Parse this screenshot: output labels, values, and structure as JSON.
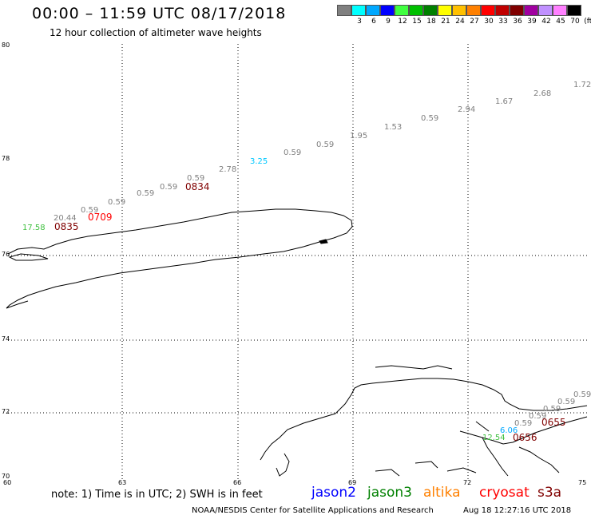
{
  "header": {
    "title": "00:00 – 11:59 UTC 08/17/2018",
    "subtitle": "12 hour collection of altimeter wave heights"
  },
  "colorscale": {
    "colors": [
      "#808080",
      "#00ffff",
      "#00a8ff",
      "#0000ff",
      "#40ff40",
      "#00c000",
      "#008000",
      "#ffff00",
      "#ffc000",
      "#ff8000",
      "#ff0000",
      "#c00000",
      "#800000",
      "#a000a0",
      "#c090ff",
      "#ff80ff",
      "#000000"
    ],
    "labels": [
      "3",
      "6",
      "9",
      "12",
      "15",
      "18",
      "21",
      "24",
      "27",
      "30",
      "33",
      "36",
      "39",
      "42",
      "45",
      "70",
      "(ft)"
    ]
  },
  "axes": {
    "lat_labels": [
      "80",
      "78",
      "76",
      "74",
      "72",
      "70"
    ],
    "lon_labels": [
      "60",
      "63",
      "66",
      "69",
      "72",
      "75"
    ]
  },
  "track1": {
    "points": [
      {
        "v": "17.58",
        "c": "#40c040"
      },
      {
        "v": "20.44",
        "c": "#808080"
      },
      {
        "v": "0.59",
        "c": "#808080"
      },
      {
        "v": "0.59",
        "c": "#808080"
      },
      {
        "v": "0.59",
        "c": "#808080"
      },
      {
        "v": "0.59",
        "c": "#808080"
      },
      {
        "v": "0.59",
        "c": "#808080"
      },
      {
        "v": "2.78",
        "c": "#808080"
      },
      {
        "v": "3.25",
        "c": "#00c8ff"
      },
      {
        "v": "0.59",
        "c": "#808080"
      },
      {
        "v": "0.59",
        "c": "#808080"
      },
      {
        "v": "1.95",
        "c": "#808080"
      },
      {
        "v": "1.53",
        "c": "#808080"
      },
      {
        "v": "0.59",
        "c": "#808080"
      },
      {
        "v": "2.94",
        "c": "#808080"
      },
      {
        "v": "1.67",
        "c": "#808080"
      },
      {
        "v": "2.68",
        "c": "#808080"
      },
      {
        "v": "1.72",
        "c": "#808080"
      }
    ],
    "times": [
      {
        "t": "0835",
        "c": "#800000"
      },
      {
        "t": "0709",
        "c": "#ff0000"
      },
      {
        "t": "0834",
        "c": "#800000"
      }
    ]
  },
  "track2": {
    "points": [
      {
        "v": "12.54",
        "c": "#40c040"
      },
      {
        "v": "6.06",
        "c": "#00a8ff"
      },
      {
        "v": "0.59",
        "c": "#808080"
      },
      {
        "v": "0.59",
        "c": "#808080"
      },
      {
        "v": "0.59",
        "c": "#808080"
      },
      {
        "v": "0.59",
        "c": "#808080"
      },
      {
        "v": "0.59",
        "c": "#808080"
      }
    ],
    "times": [
      {
        "t": "0655",
        "c": "#800000"
      },
      {
        "t": "0656",
        "c": "#800000"
      }
    ]
  },
  "footer": {
    "note": "note: 1) Time is in UTC; 2) SWH is in feet",
    "satellites": [
      {
        "name": "jason2",
        "c": "#0000ff"
      },
      {
        "name": "jason3",
        "c": "#008000"
      },
      {
        "name": "altika",
        "c": "#ff8000"
      },
      {
        "name": "cryosat",
        "c": "#ff0000"
      },
      {
        "name": "s3a",
        "c": "#800000"
      }
    ],
    "credit": "NOAA/NESDIS Center for Satellite Applications and Research",
    "timestamp": "Aug 18 12:27:16 UTC 2018"
  }
}
